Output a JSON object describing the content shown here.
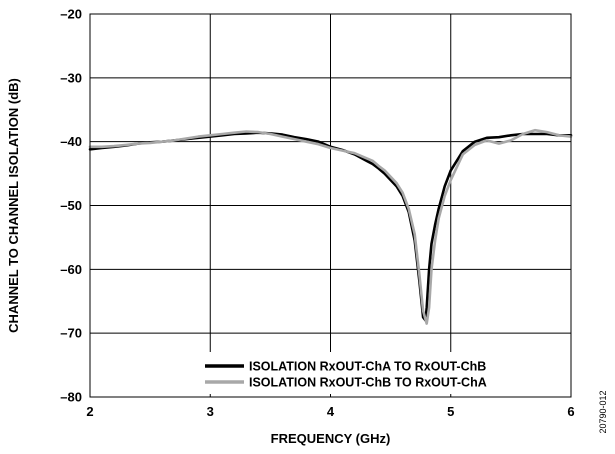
{
  "chart_data": {
    "type": "line",
    "xlabel": "FREQUENCY (GHz)",
    "ylabel": "CHANNEL TO CHANNEL ISOLATION (dB)",
    "xlim": [
      2,
      6
    ],
    "ylim": [
      -80,
      -20
    ],
    "xticks": [
      2,
      3,
      4,
      5,
      6
    ],
    "yticks": [
      -20,
      -30,
      -40,
      -50,
      -60,
      -70,
      -80
    ],
    "xtick_labels": [
      "2",
      "3",
      "4",
      "5",
      "6"
    ],
    "ytick_labels": [
      "–20",
      "–30",
      "–40",
      "–50",
      "–60",
      "–70",
      "–80"
    ],
    "grid": true,
    "legend_position": "bottom-right",
    "figure_id": "20790-012",
    "series": [
      {
        "name": "ISOLATION RxOUT-ChA TO RxOUT-ChB",
        "color": "#000000",
        "x": [
          2.0,
          2.1,
          2.2,
          2.3,
          2.4,
          2.5,
          2.6,
          2.7,
          2.8,
          2.9,
          3.0,
          3.1,
          3.2,
          3.3,
          3.4,
          3.5,
          3.6,
          3.7,
          3.8,
          3.9,
          4.0,
          4.1,
          4.2,
          4.3,
          4.35,
          4.4,
          4.45,
          4.5,
          4.55,
          4.6,
          4.65,
          4.7,
          4.74,
          4.77,
          4.79,
          4.8,
          4.82,
          4.84,
          4.87,
          4.9,
          4.95,
          5.0,
          5.1,
          5.2,
          5.3,
          5.4,
          5.5,
          5.6,
          5.7,
          5.8,
          5.9,
          6.0
        ],
        "y": [
          -41.2,
          -41.0,
          -40.8,
          -40.6,
          -40.3,
          -40.1,
          -40.0,
          -39.8,
          -39.6,
          -39.4,
          -39.2,
          -39.0,
          -38.8,
          -38.7,
          -38.6,
          -38.7,
          -38.9,
          -39.3,
          -39.6,
          -40.0,
          -40.8,
          -41.3,
          -42.0,
          -43.0,
          -43.5,
          -44.2,
          -45.0,
          -46.0,
          -47.0,
          -48.5,
          -51.0,
          -55.5,
          -62.0,
          -67.5,
          -68.0,
          -66.0,
          -60.0,
          -56.0,
          -53.0,
          -50.5,
          -47.0,
          -44.5,
          -41.5,
          -40.0,
          -39.4,
          -39.3,
          -39.0,
          -38.8,
          -38.8,
          -38.8,
          -39.0,
          -39.0
        ]
      },
      {
        "name": "ISOLATION RxOUT-ChB TO RxOUT-ChA",
        "color": "#a8a8a8",
        "x": [
          2.0,
          2.1,
          2.2,
          2.3,
          2.4,
          2.5,
          2.6,
          2.7,
          2.8,
          2.9,
          3.0,
          3.1,
          3.2,
          3.3,
          3.4,
          3.5,
          3.6,
          3.7,
          3.8,
          3.9,
          4.0,
          4.1,
          4.2,
          4.3,
          4.35,
          4.4,
          4.45,
          4.5,
          4.55,
          4.6,
          4.65,
          4.7,
          4.74,
          4.77,
          4.8,
          4.82,
          4.84,
          4.87,
          4.9,
          4.95,
          5.0,
          5.1,
          5.2,
          5.3,
          5.4,
          5.5,
          5.6,
          5.7,
          5.8,
          5.9,
          6.0
        ],
        "y": [
          -40.8,
          -40.8,
          -40.7,
          -40.5,
          -40.3,
          -40.2,
          -40.0,
          -39.8,
          -39.5,
          -39.2,
          -39.0,
          -38.8,
          -38.6,
          -38.4,
          -38.5,
          -38.8,
          -39.2,
          -39.6,
          -40.0,
          -40.4,
          -41.0,
          -41.4,
          -41.8,
          -42.6,
          -43.0,
          -43.8,
          -44.5,
          -45.5,
          -46.5,
          -48.0,
          -50.5,
          -54.5,
          -61.0,
          -66.5,
          -68.5,
          -66.0,
          -60.0,
          -55.5,
          -52.0,
          -48.5,
          -46.0,
          -42.0,
          -40.5,
          -39.8,
          -40.3,
          -39.8,
          -38.8,
          -38.2,
          -38.5,
          -39.0,
          -39.2
        ]
      }
    ]
  }
}
